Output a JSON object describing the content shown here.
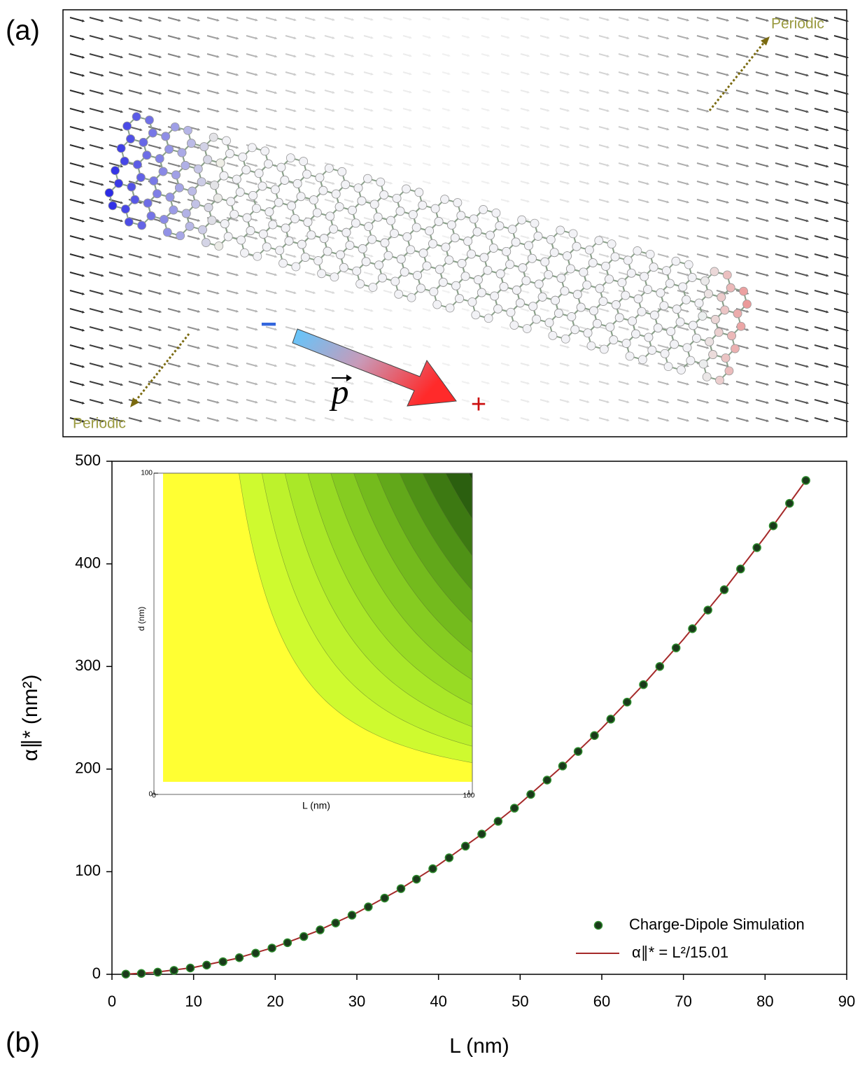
{
  "panel_a": {
    "label": "(a)",
    "periodic_top": "Periodic",
    "periodic_bottom": "Periodic",
    "minus": "−",
    "plus": "+",
    "dipole": "p"
  },
  "chart_data": {
    "type": "scatter",
    "label": "(b)",
    "xlabel": "L (nm)",
    "ylabel": "α∥* (nm²)",
    "xlim": [
      0,
      90
    ],
    "ylim": [
      0,
      500
    ],
    "xticks": [
      0,
      10,
      20,
      30,
      40,
      50,
      60,
      70,
      80,
      90
    ],
    "yticks": [
      0,
      100,
      200,
      300,
      400,
      500
    ],
    "legend": "lower right",
    "series": [
      {
        "name": "Charge-Dipole Simulation",
        "type": "scatter",
        "color": "#1a3a1a",
        "edge": "#2e8b2e",
        "x": [
          1.7,
          3.6,
          5.6,
          7.6,
          9.6,
          11.6,
          13.6,
          15.6,
          17.6,
          19.6,
          21.5,
          23.5,
          25.5,
          27.4,
          29.4,
          31.4,
          33.4,
          35.4,
          37.3,
          39.3,
          41.3,
          43.3,
          45.3,
          47.3,
          49.3,
          51.3,
          53.3,
          55.2,
          57.1,
          59.1,
          61.1,
          63.1,
          65.1,
          67.1,
          69.1,
          71.1,
          73.0,
          75.0,
          77.0,
          79.0,
          81.0,
          83.0,
          85.0
        ],
        "values": [
          0.19,
          0.86,
          2.09,
          3.85,
          6.14,
          8.96,
          12.3,
          16.2,
          20.6,
          25.6,
          30.8,
          36.8,
          43.3,
          50.0,
          57.6,
          65.7,
          74.3,
          83.5,
          92.7,
          102.9,
          113.6,
          124.9,
          136.7,
          149.1,
          161.9,
          175.3,
          189.3,
          203.0,
          217.2,
          232.7,
          248.7,
          265.3,
          282.3,
          300.0,
          318.1,
          336.8,
          355.0,
          374.8,
          395.0,
          415.8,
          437.1,
          459.0,
          481.3
        ]
      },
      {
        "name": "α∥* = L²/15.01",
        "type": "line",
        "color": "#a52a2a",
        "x": [
          1.7,
          5,
          10,
          15,
          20,
          25,
          30,
          35,
          40,
          45,
          50,
          55,
          60,
          65,
          70,
          75,
          80,
          85
        ],
        "values": [
          0.19,
          1.67,
          6.66,
          14.99,
          26.65,
          41.64,
          59.96,
          81.61,
          106.6,
          134.9,
          166.6,
          201.6,
          239.8,
          281.5,
          326.5,
          374.8,
          426.4,
          481.3
        ]
      }
    ],
    "inset": {
      "xlabel": "L (nm)",
      "ylabel": "d (nm)",
      "xlim": [
        0,
        100
      ],
      "ylim": [
        0,
        100
      ],
      "xticks": [
        0,
        100
      ],
      "yticks": [
        0,
        100
      ]
    }
  }
}
